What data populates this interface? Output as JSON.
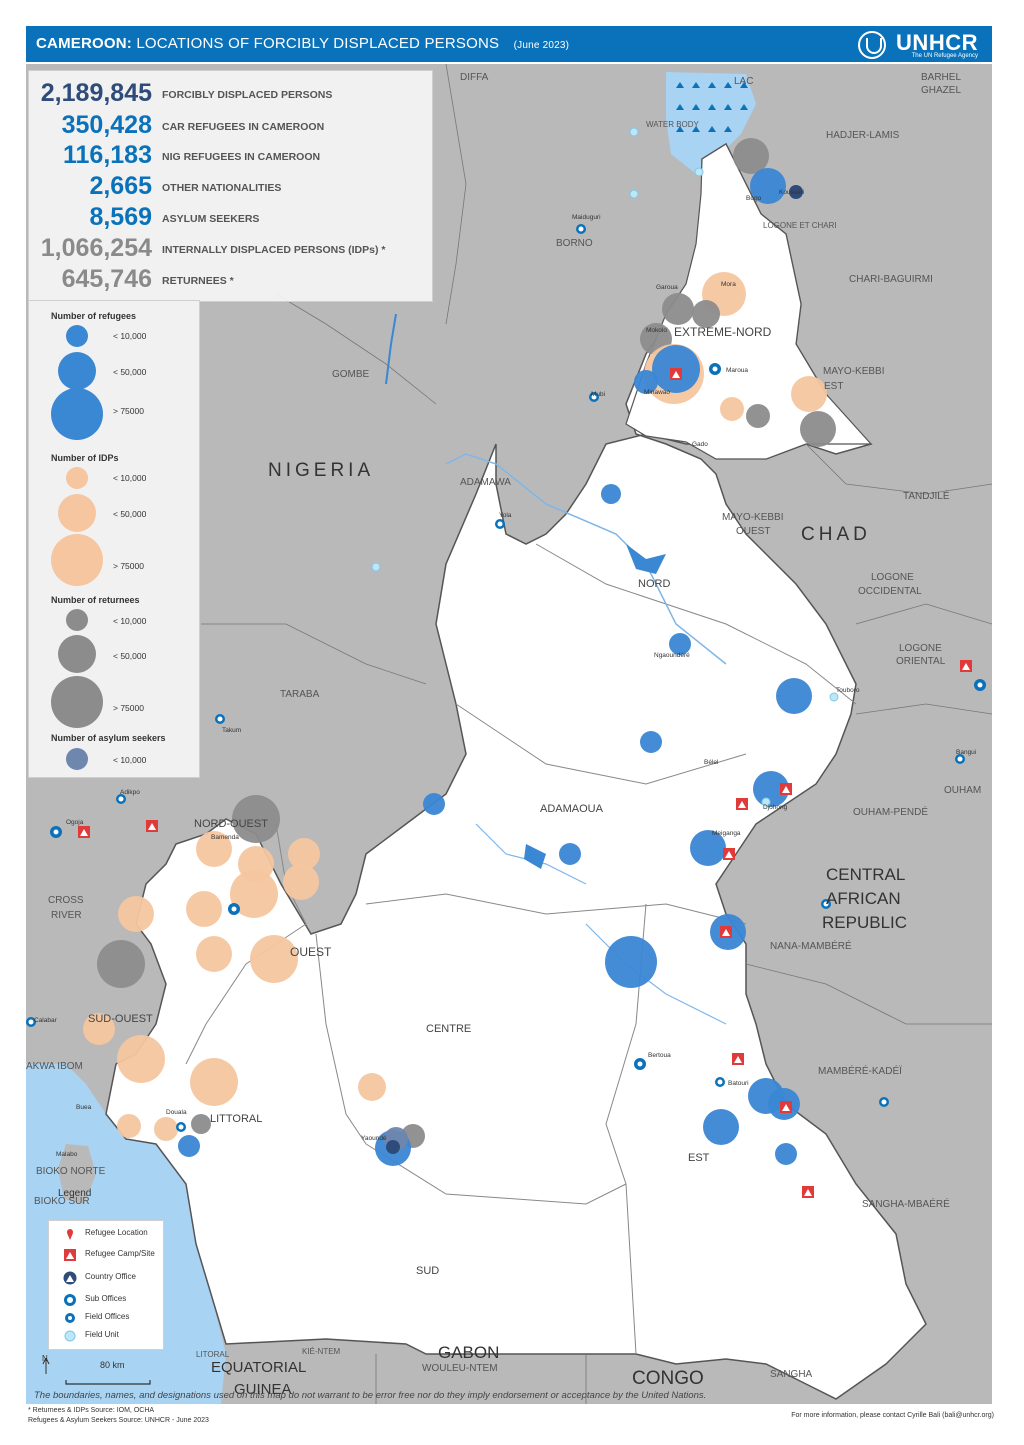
{
  "header": {
    "title_bold": "CAMEROON:",
    "title_rest": " LOCATIONS OF FORCIBLY DISPLACED PERSONS",
    "date": "(June 2023)",
    "logo": "UNHCR",
    "logo_sub": "The UN Refugee Agency"
  },
  "colors": {
    "header": "#0a72ba",
    "refugees": "#3a87d4",
    "idps": "#f5c6a0",
    "returnees": "#8c8c8c",
    "asylum_seekers": "#6f86ad",
    "cameroon_land": "#ffffff",
    "neighbour_land": "#b9b9b9",
    "sea": "#a9d3f2"
  },
  "stats": [
    {
      "value": "2,189,845",
      "label": "FORCIBLY DISPLACED PERSONS"
    },
    {
      "value": "350,428",
      "label": "CAR REFUGEES IN CAMEROON"
    },
    {
      "value": "116,183",
      "label": "NIG REFUGEES IN CAMEROON"
    },
    {
      "value": "2,665",
      "label": "OTHER NATIONALITIES"
    },
    {
      "value": "8,569",
      "label": "ASYLUM SEEKERS"
    },
    {
      "value": "1,066,254",
      "label": "INTERNALLY DISPLACED PERSONS (IDPs) *"
    },
    {
      "value": "645,746",
      "label": "RETURNEES *"
    }
  ],
  "legend_sizes": {
    "refugees_title": "Number of refugees",
    "idps_title": "Number of IDPs",
    "returnees_title": "Number of returnees",
    "asylum_title": "Number of asylum seekers",
    "refugees": [
      "< 10,000",
      "< 50,000",
      "> 75000"
    ],
    "idps": [
      "< 10,000",
      "< 50,000",
      "> 75000"
    ],
    "returnees": [
      "< 10,000",
      "< 50,000",
      "> 75000"
    ],
    "asylum": [
      "< 10,000"
    ]
  },
  "legend_symbols": {
    "title": "Legend",
    "items": [
      "Refugee Location",
      "Refugee Camp/Site",
      "Country Office",
      "Sub Offices",
      "Field Offices",
      "Field Unit"
    ]
  },
  "scale_label": "80 km",
  "north": "N",
  "disclaimer": "The boundaries, names, and designations used on this map do not warrant to be error free nor do they imply endorsement or acceptance by the United Nations.",
  "footnote_1": "* Returnees & IDPs Source: IOM, OCHA",
  "footnote_2": "Refugees & Asylum Seekers Source: UNHCR - June 2023",
  "contact": "For more information, please contact Cyrille Bali (bali@unhcr.org)",
  "country_labels": [
    "NIGERIA",
    "CHAD",
    "CENTRAL",
    "AFRICAN",
    "REPUBLIC",
    "GABON",
    "CONGO",
    "EQUATORIAL",
    "GUINEA"
  ],
  "region_labels_cameroon": [
    "EXTREME-NORD",
    "NORD",
    "ADAMAOUA",
    "NORD-OUEST",
    "OUEST",
    "SUD-OUEST",
    "LITTORAL",
    "CENTRE",
    "EST",
    "SUD"
  ],
  "region_labels_neighbours": [
    "DIFFA",
    "LAC",
    "BARHEL",
    "GHAZEL",
    "HADJER-LAMIS",
    "CHARI-BAGUIRMI",
    "MAYO-KEBBI",
    "EST",
    "TANDJILÉ",
    "MAYO-KEBBI",
    "OUEST",
    "LOGONE",
    "OCCIDENTAL",
    "LOGONE",
    "ORIENTAL",
    "OUHAM",
    "OUHAM-PENDÉ",
    "NANA-MAMBÉRÉ",
    "MAMBÉRÉ-KADÉÏ",
    "SANGHA-MBAÉRÉ",
    "SANGHA",
    "BORNO",
    "GOMBE",
    "ADAMAWA",
    "TARABA",
    "CROSS",
    "RIVER",
    "AKWA IBOM",
    "BIOKO NORTE",
    "BIOKO SUR",
    "WOULEU-NTEM",
    "KIÉ-NTEM",
    "LITORAL",
    "WATER BODY",
    "LOGONE ET CHARI"
  ],
  "town_labels": [
    "Maroua",
    "Yola",
    "Kousseri",
    "Garoua",
    "Meiganga",
    "Bertoua",
    "Batouri",
    "Yaoundé",
    "Douala",
    "Bamenda",
    "Buea",
    "Ngaoundéré",
    "Maiduguri",
    "Mokolo",
    "Minawao",
    "Gado",
    "Touboro",
    "Djohong",
    "Bélel",
    "Mora",
    "Mubi",
    "Bogo",
    "Ogoja",
    "Adikpo",
    "Takum",
    "Calabar",
    "Malabo",
    "Bangui"
  ]
}
